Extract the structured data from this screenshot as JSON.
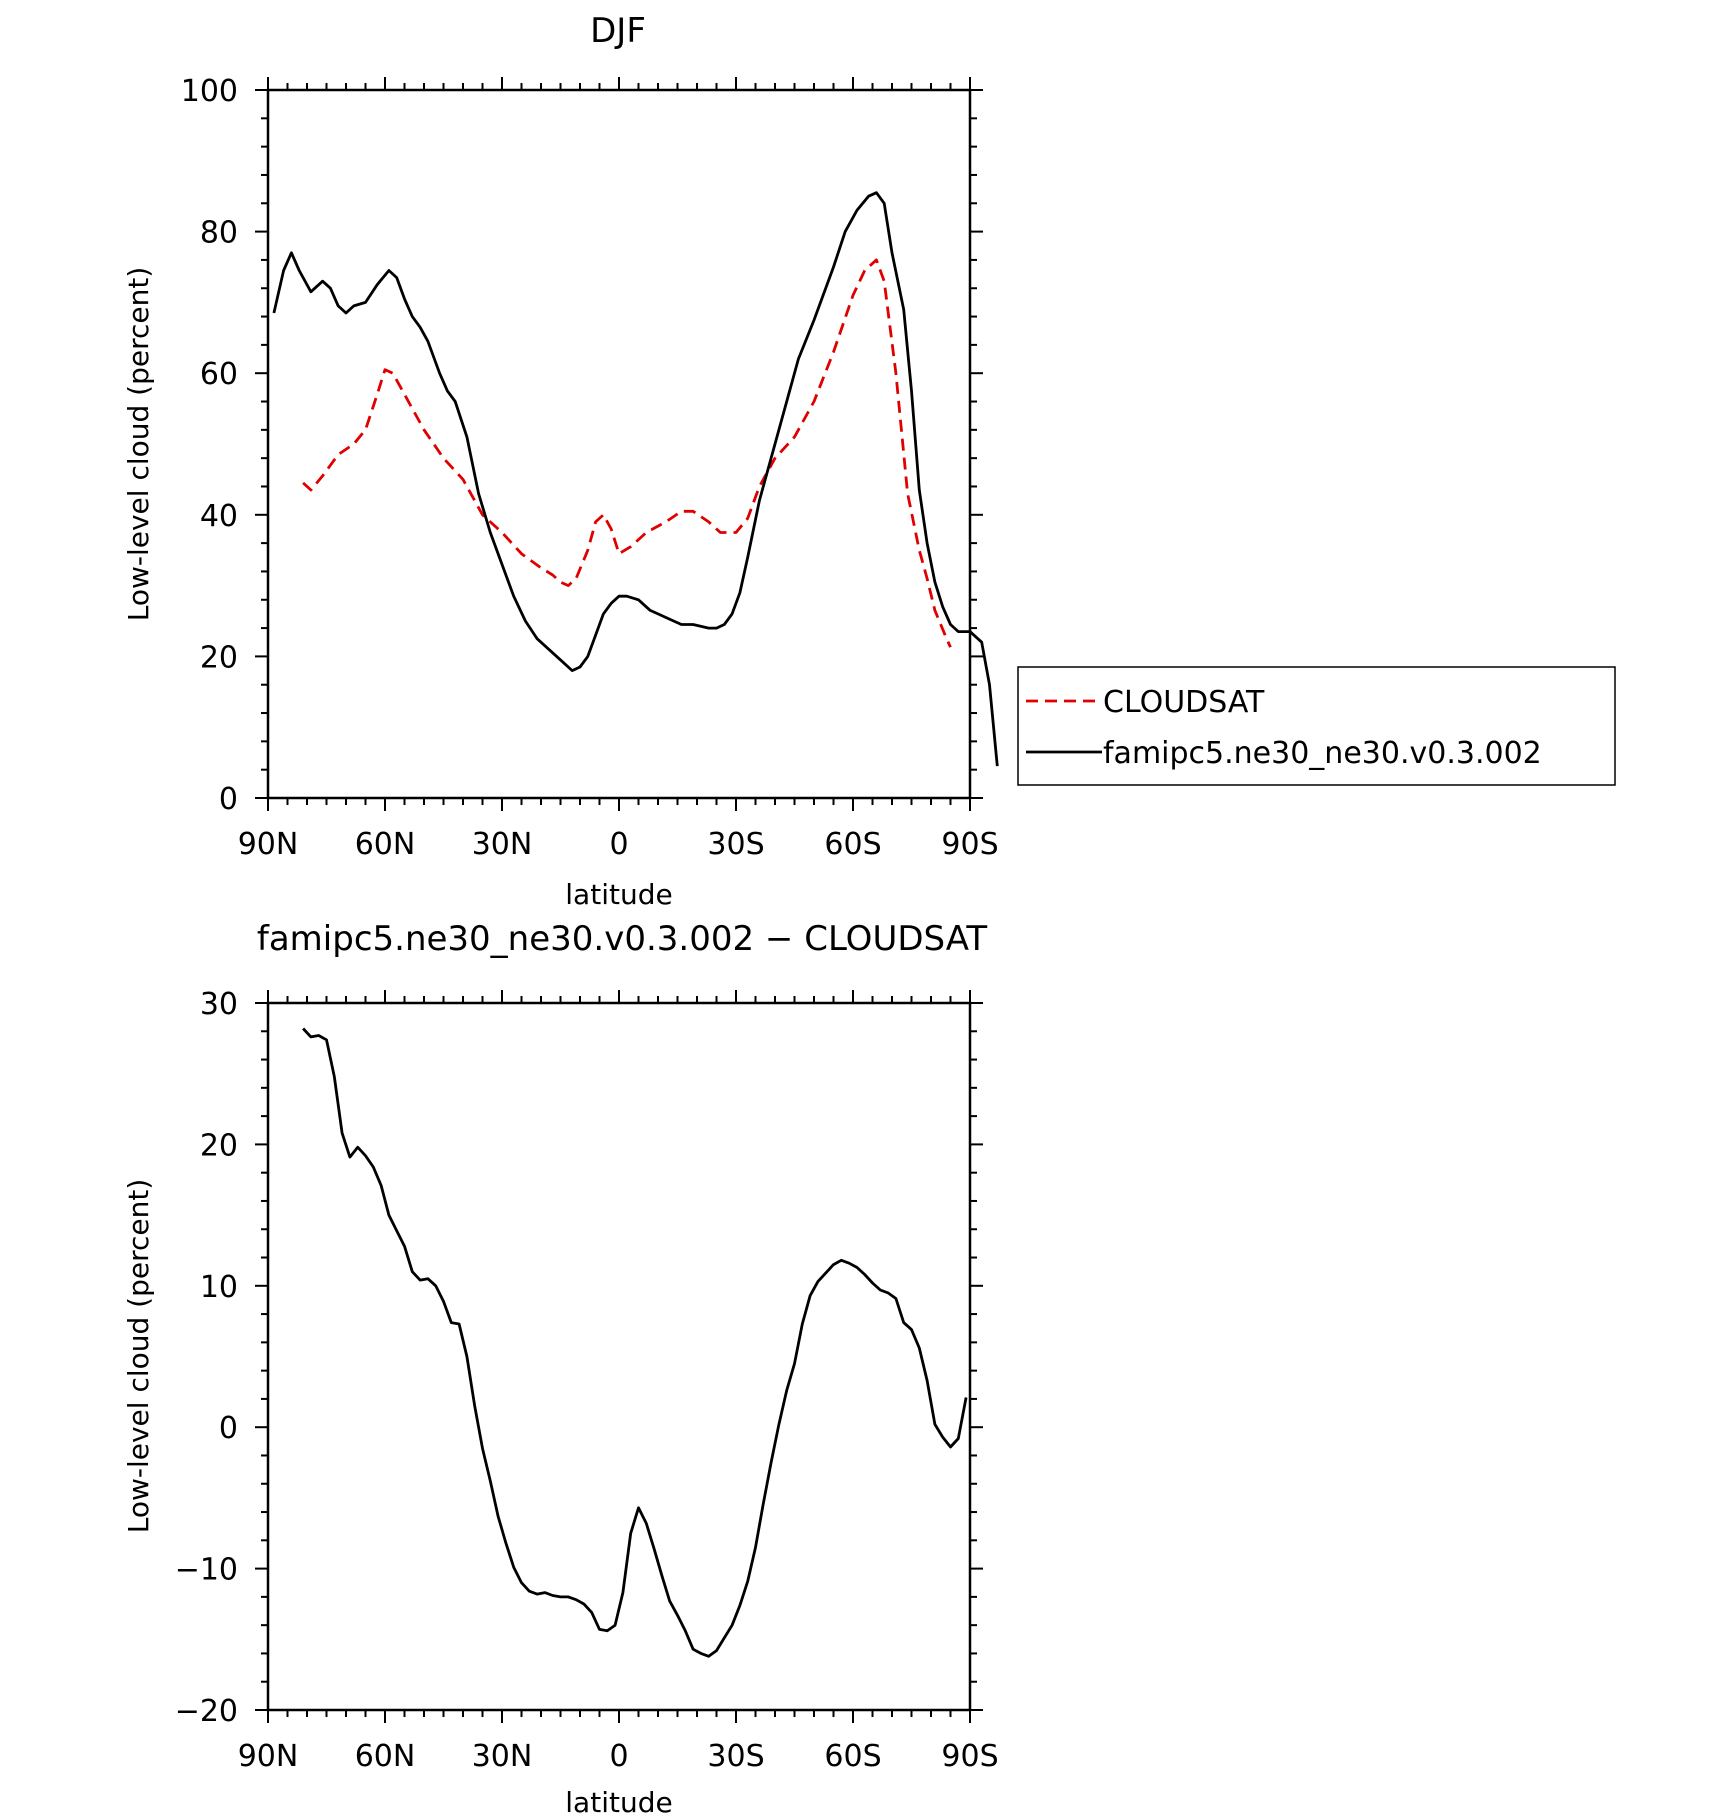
{
  "chart_data": [
    {
      "type": "line",
      "title": "DJF",
      "xlabel": "latitude",
      "ylabel": "Low-level cloud (percent)",
      "xlim": [
        90,
        -90
      ],
      "ylim": [
        0,
        100
      ],
      "x_ticks": [
        90,
        60,
        30,
        0,
        -30,
        -60,
        -90
      ],
      "x_tick_labels": [
        "90N",
        "60N",
        "30N",
        "0",
        "30S",
        "60S",
        "90S"
      ],
      "y_ticks": [
        0,
        20,
        40,
        60,
        80,
        100
      ],
      "y_tick_labels": [
        "0",
        "20",
        "40",
        "60",
        "80",
        "100"
      ],
      "legend_position": "right",
      "series": [
        {
          "name": "CLOUDSAT",
          "color": "#e00000",
          "dash": "dashed",
          "points": [
            [
              81,
              44.5
            ],
            [
              79,
              43.5
            ],
            [
              76,
              45.5
            ],
            [
              72,
              48.5
            ],
            [
              68,
              50
            ],
            [
              65,
              52
            ],
            [
              62,
              57
            ],
            [
              60,
              60.5
            ],
            [
              58,
              60
            ],
            [
              55,
              57
            ],
            [
              50,
              52
            ],
            [
              45,
              48
            ],
            [
              40,
              45
            ],
            [
              35,
              40
            ],
            [
              30,
              37.5
            ],
            [
              25,
              34.5
            ],
            [
              20,
              32.5
            ],
            [
              17,
              31.5
            ],
            [
              15,
              30.5
            ],
            [
              13,
              30
            ],
            [
              11,
              31
            ],
            [
              8,
              35
            ],
            [
              6,
              39
            ],
            [
              4,
              40
            ],
            [
              2,
              38
            ],
            [
              0,
              34.5
            ],
            [
              -3,
              35.5
            ],
            [
              -7,
              37.5
            ],
            [
              -12,
              39
            ],
            [
              -16,
              40.5
            ],
            [
              -19,
              40.5
            ],
            [
              -23,
              39
            ],
            [
              -26,
              37.5
            ],
            [
              -30,
              37.5
            ],
            [
              -33,
              39.5
            ],
            [
              -36,
              44
            ],
            [
              -40,
              48
            ],
            [
              -45,
              51
            ],
            [
              -50,
              56
            ],
            [
              -55,
              63
            ],
            [
              -60,
              71
            ],
            [
              -63,
              74.5
            ],
            [
              -66,
              76
            ],
            [
              -68,
              73
            ],
            [
              -71,
              60
            ],
            [
              -74,
              43
            ],
            [
              -77,
              35
            ],
            [
              -79,
              31
            ],
            [
              -81,
              26.5
            ],
            [
              -84,
              22.5
            ],
            [
              -85,
              21.3
            ]
          ]
        },
        {
          "name": "famipc5.ne30_ne30.v0.3.002",
          "color": "#000000",
          "dash": "solid",
          "points": [
            [
              88.5,
              68.5
            ],
            [
              86,
              74.5
            ],
            [
              84,
              77
            ],
            [
              82,
              74.5
            ],
            [
              79,
              71.5
            ],
            [
              76,
              73
            ],
            [
              74,
              72
            ],
            [
              72,
              69.5
            ],
            [
              70,
              68.5
            ],
            [
              68,
              69.5
            ],
            [
              65,
              70
            ],
            [
              62,
              72.5
            ],
            [
              59,
              74.5
            ],
            [
              57,
              73.5
            ],
            [
              55,
              70.5
            ],
            [
              53,
              68
            ],
            [
              51,
              66.5
            ],
            [
              49,
              64.5
            ],
            [
              46,
              60
            ],
            [
              44,
              57.5
            ],
            [
              42,
              56
            ],
            [
              39,
              51
            ],
            [
              36,
              43
            ],
            [
              33,
              37.5
            ],
            [
              30,
              33
            ],
            [
              27,
              28.5
            ],
            [
              24,
              25
            ],
            [
              21,
              22.5
            ],
            [
              18,
              21
            ],
            [
              15,
              19.5
            ],
            [
              12,
              18
            ],
            [
              10,
              18.5
            ],
            [
              8,
              20
            ],
            [
              6,
              23
            ],
            [
              4,
              26
            ],
            [
              2,
              27.5
            ],
            [
              0,
              28.5
            ],
            [
              -2,
              28.5
            ],
            [
              -5,
              28
            ],
            [
              -8,
              26.5
            ],
            [
              -10,
              26
            ],
            [
              -14,
              25
            ],
            [
              -16,
              24.5
            ],
            [
              -19,
              24.5
            ],
            [
              -23,
              24
            ],
            [
              -25,
              24
            ],
            [
              -27,
              24.5
            ],
            [
              -29,
              26
            ],
            [
              -31,
              29
            ],
            [
              -33,
              34
            ],
            [
              -36,
              42
            ],
            [
              -40,
              50
            ],
            [
              -43,
              56
            ],
            [
              -46,
              62
            ],
            [
              -50,
              67.5
            ],
            [
              -55,
              75
            ],
            [
              -58,
              80
            ],
            [
              -61,
              83
            ],
            [
              -64,
              85
            ],
            [
              -66,
              85.5
            ],
            [
              -68,
              84
            ],
            [
              -70,
              77
            ],
            [
              -73,
              69
            ],
            [
              -75,
              57.5
            ],
            [
              -77,
              43.5
            ],
            [
              -79,
              36
            ],
            [
              -81,
              30.5
            ],
            [
              -83,
              27
            ],
            [
              -85,
              24.5
            ],
            [
              -87,
              23.5
            ],
            [
              -90,
              23.5
            ],
            [
              -93,
              22
            ],
            [
              -95,
              16
            ],
            [
              -97,
              4.5
            ]
          ]
        }
      ]
    },
    {
      "type": "line",
      "title": "famipc5.ne30_ne30.v0.3.002 − CLOUDSAT",
      "xlabel": "latitude",
      "ylabel": "Low-level cloud (percent)",
      "xlim": [
        90,
        -90
      ],
      "ylim": [
        -20,
        30
      ],
      "x_ticks": [
        90,
        60,
        30,
        0,
        -30,
        -60,
        -90
      ],
      "x_tick_labels": [
        "90N",
        "60N",
        "30N",
        "0",
        "30S",
        "60S",
        "90S"
      ],
      "y_ticks": [
        -20,
        -10,
        0,
        10,
        20,
        30
      ],
      "y_tick_labels": [
        "−20",
        "−10",
        "0",
        "10",
        "20",
        "30"
      ],
      "series": [
        {
          "name": "",
          "color": "#000000",
          "dash": "solid",
          "points": [
            [
              81,
              28.2
            ],
            [
              79,
              27.6
            ],
            [
              77,
              27.7
            ],
            [
              75,
              27.4
            ],
            [
              73,
              24.8
            ],
            [
              71,
              20.8
            ],
            [
              69,
              19.1
            ],
            [
              67,
              19.8
            ],
            [
              65,
              19.2
            ],
            [
              63,
              18.4
            ],
            [
              61,
              17.1
            ],
            [
              59,
              15
            ],
            [
              57,
              13.9
            ],
            [
              55,
              12.8
            ],
            [
              53,
              11
            ],
            [
              51,
              10.4
            ],
            [
              49,
              10.5
            ],
            [
              47,
              10
            ],
            [
              45,
              8.9
            ],
            [
              43,
              7.4
            ],
            [
              41,
              7.3
            ],
            [
              39,
              5
            ],
            [
              37,
              1.5
            ],
            [
              35,
              -1.5
            ],
            [
              33,
              -3.8
            ],
            [
              31,
              -6.3
            ],
            [
              29,
              -8.2
            ],
            [
              27,
              -9.9
            ],
            [
              25,
              -11
            ],
            [
              23,
              -11.6
            ],
            [
              21,
              -11.8
            ],
            [
              19,
              -11.7
            ],
            [
              17,
              -11.9
            ],
            [
              15,
              -12
            ],
            [
              13,
              -12
            ],
            [
              11,
              -12.2
            ],
            [
              9,
              -12.5
            ],
            [
              7,
              -13.1
            ],
            [
              5,
              -14.3
            ],
            [
              3,
              -14.4
            ],
            [
              1,
              -14
            ],
            [
              -1,
              -11.7
            ],
            [
              -3,
              -7.5
            ],
            [
              -5,
              -5.7
            ],
            [
              -7,
              -6.8
            ],
            [
              -9,
              -8.6
            ],
            [
              -11,
              -10.5
            ],
            [
              -13,
              -12.3
            ],
            [
              -15,
              -13.3
            ],
            [
              -17,
              -14.4
            ],
            [
              -19,
              -15.7
            ],
            [
              -21,
              -16
            ],
            [
              -23,
              -16.2
            ],
            [
              -25,
              -15.8
            ],
            [
              -27,
              -14.9
            ],
            [
              -29,
              -14
            ],
            [
              -31,
              -12.6
            ],
            [
              -33,
              -10.9
            ],
            [
              -35,
              -8.5
            ],
            [
              -37,
              -5.4
            ],
            [
              -39,
              -2.5
            ],
            [
              -41,
              0.2
            ],
            [
              -43,
              2.6
            ],
            [
              -45,
              4.5
            ],
            [
              -47,
              7.3
            ],
            [
              -49,
              9.3
            ],
            [
              -51,
              10.3
            ],
            [
              -53,
              10.9
            ],
            [
              -55,
              11.5
            ],
            [
              -57,
              11.8
            ],
            [
              -59,
              11.6
            ],
            [
              -61,
              11.3
            ],
            [
              -63,
              10.8
            ],
            [
              -65,
              10.2
            ],
            [
              -67,
              9.7
            ],
            [
              -69,
              9.5
            ],
            [
              -71,
              9.1
            ],
            [
              -73,
              7.4
            ],
            [
              -75,
              6.9
            ],
            [
              -77,
              5.6
            ],
            [
              -79,
              3.3
            ],
            [
              -81,
              0.2
            ],
            [
              -83,
              -0.7
            ],
            [
              -85,
              -1.4
            ],
            [
              -87,
              -0.8
            ],
            [
              -89,
              2.1
            ]
          ]
        }
      ]
    }
  ]
}
